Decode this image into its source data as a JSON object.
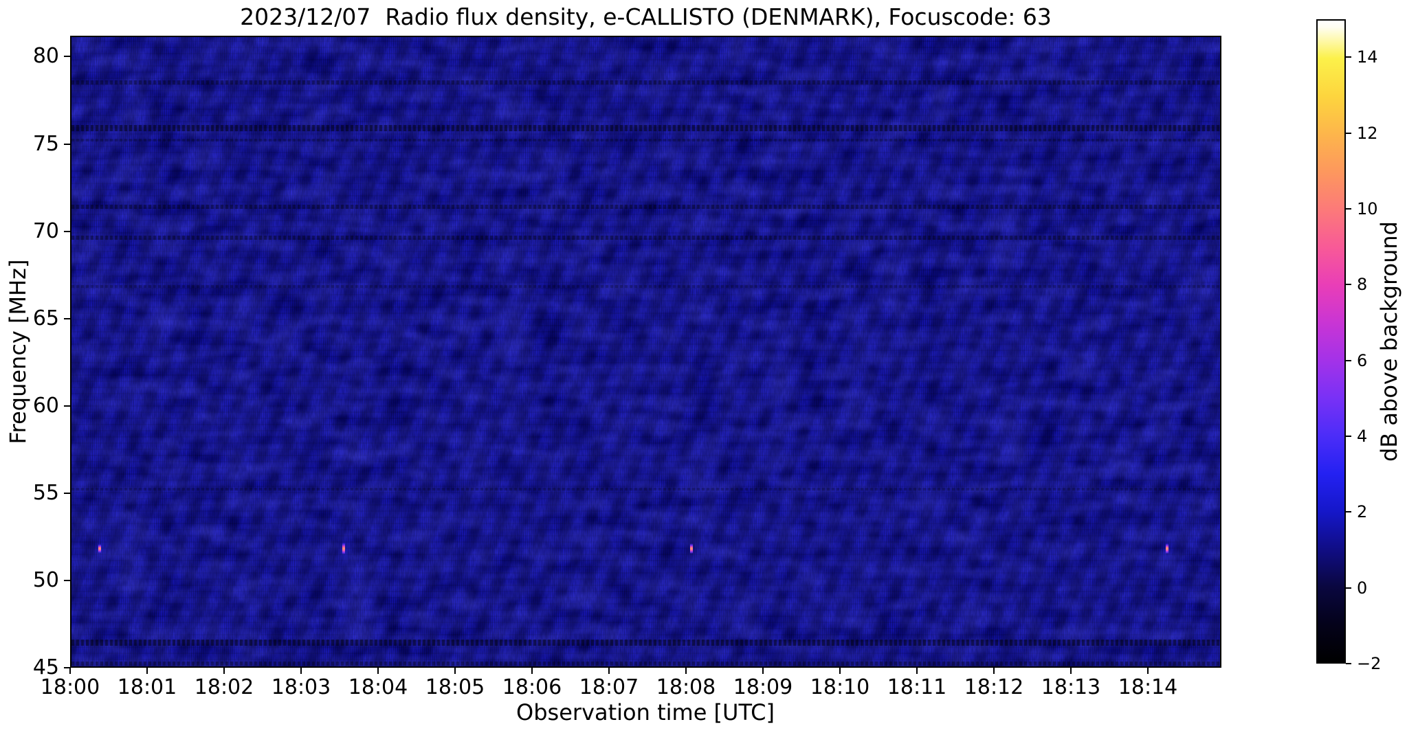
{
  "figure": {
    "title": "2023/12/07  Radio flux density, e-CALLISTO (DENMARK), Focuscode: 63"
  },
  "chart_data": {
    "type": "heatmap",
    "title": "2023/12/07  Radio flux density, e-CALLISTO (DENMARK), Focuscode: 63",
    "xlabel": "Observation time [UTC]",
    "ylabel": "Frequency [MHz]",
    "x_tick_labels": [
      "18:00",
      "18:01",
      "18:02",
      "18:03",
      "18:04",
      "18:05",
      "18:06",
      "18:07",
      "18:08",
      "18:09",
      "18:10",
      "18:11",
      "18:12",
      "18:13",
      "18:14"
    ],
    "x_range_utc": [
      "18:00:00",
      "18:15:00"
    ],
    "y_tick_labels": [
      "80",
      "75",
      "70",
      "65",
      "60",
      "55",
      "50",
      "45"
    ],
    "y_tick_values": [
      80,
      75,
      70,
      65,
      60,
      55,
      50,
      45
    ],
    "y_range_mhz": [
      45,
      81.2
    ],
    "grid": false,
    "legend": "none",
    "colorbar": {
      "label": "dB above background",
      "tick_labels": [
        "14",
        "12",
        "10",
        "8",
        "6",
        "4",
        "2",
        "0",
        "−2"
      ],
      "tick_values": [
        14,
        12,
        10,
        8,
        6,
        4,
        2,
        0,
        -2
      ],
      "range_db": [
        -2,
        15
      ],
      "colormap": "gnuplot2 (black→blue→violet→magenta→orange→yellow→white)"
    },
    "background": {
      "description": "Quiet-sun radio spectrogram: dark blue noise floor of about 0–2 dB with wavy diagonal interference ripple texture",
      "noise_floor_db": [
        0,
        2
      ]
    },
    "interference_bands": [
      {
        "freq_mhz": 78.6,
        "strength": "medium"
      },
      {
        "freq_mhz": 76.0,
        "strength": "strong"
      },
      {
        "freq_mhz": 75.3,
        "strength": "faint"
      },
      {
        "freq_mhz": 71.5,
        "strength": "medium"
      },
      {
        "freq_mhz": 69.7,
        "strength": "medium"
      },
      {
        "freq_mhz": 66.9,
        "strength": "faint"
      },
      {
        "freq_mhz": 55.3,
        "strength": "faint"
      },
      {
        "freq_mhz": 46.5,
        "strength": "strong"
      },
      {
        "freq_mhz": 45.3,
        "strength": "medium"
      }
    ],
    "point_events": [
      {
        "time_utc": "18:00:22",
        "freq_mhz": 51.9,
        "peak_db": 8
      },
      {
        "time_utc": "18:03:32",
        "freq_mhz": 51.9,
        "peak_db": 10
      },
      {
        "time_utc": "18:08:03",
        "freq_mhz": 51.9,
        "peak_db": 9
      },
      {
        "time_utc": "18:14:14",
        "freq_mhz": 51.9,
        "peak_db": 9
      }
    ]
  },
  "colors": {
    "noise_floor_blue": "#0d0c96",
    "burst_core": "#ff9b6d",
    "burst_pink": "#ea4fc0",
    "burst_violet": "#6a2cf0",
    "spine": "#000000",
    "page_background": "#ffffff"
  }
}
